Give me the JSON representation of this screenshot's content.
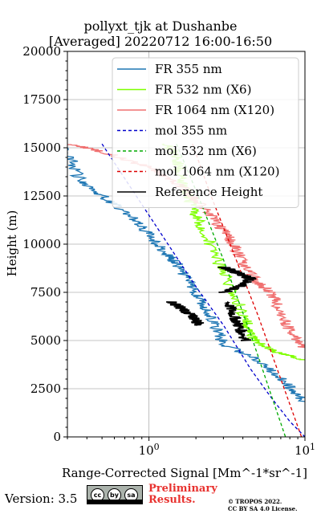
{
  "chart_data": {
    "type": "line",
    "title": "pollyxt_tjk at Dushanbe",
    "subtitle": "[Averaged] 20220712 16:00-16:50",
    "xlabel": "Range-Corrected Signal [Mm^-1*sr^-1]",
    "ylabel": "Height (m)",
    "xscale": "log",
    "xlim": [
      0.3,
      10
    ],
    "ylim": [
      0,
      20000
    ],
    "x_ticks": [
      1,
      10
    ],
    "x_tick_labels": [
      "10^0",
      "10^1"
    ],
    "y_ticks": [
      0,
      2500,
      5000,
      7500,
      10000,
      12500,
      15000,
      17500,
      20000
    ],
    "grid": true,
    "legend_position": "top-right",
    "series": [
      {
        "name": "FR 355 nm",
        "color": "#1f77b4",
        "style": "solid",
        "noisy": true,
        "x": [
          10,
          7.5,
          5,
          3,
          2.6,
          2.2,
          1.8,
          1.5,
          1.3,
          1.0,
          0.75,
          0.5,
          0.35,
          0.3
        ],
        "y": [
          1800,
          2800,
          4000,
          4800,
          6000,
          7000,
          8000,
          9000,
          9500,
          10500,
          11500,
          12500,
          13500,
          15000
        ]
      },
      {
        "name": "FR 532 nm (X6)",
        "color": "#7fff00",
        "style": "solid",
        "noisy": true,
        "x": [
          10,
          6.5,
          4.5,
          4.2,
          3.5,
          2.8,
          2.3,
          2.0,
          1.8,
          1.6,
          1.5,
          1.3
        ],
        "y": [
          4000,
          4400,
          5200,
          6000,
          7500,
          9000,
          10500,
          11500,
          12500,
          13500,
          14500,
          15200
        ]
      },
      {
        "name": "FR 1064 nm (X120)",
        "color": "#f07070",
        "style": "solid",
        "noisy": true,
        "x": [
          10,
          8,
          7,
          6,
          5,
          4,
          3.5,
          2.8,
          2.2,
          1.6,
          1.0,
          0.5,
          0.3
        ],
        "y": [
          4500,
          5500,
          6500,
          7500,
          8000,
          9000,
          10000,
          11000,
          12000,
          13000,
          14000,
          14800,
          15200
        ]
      },
      {
        "name": "mol 355 nm",
        "color": "#0000cc",
        "style": "dashed",
        "x": [
          0.5,
          1.0,
          2.0,
          3.0,
          4.5,
          6.0,
          8.0,
          10.0
        ],
        "y": [
          15200,
          11500,
          7800,
          5800,
          3500,
          2100,
          800,
          0
        ]
      },
      {
        "name": "mol 532 nm (X6)",
        "color": "#00aa00",
        "style": "dashed",
        "x": [
          1.5,
          2.0,
          3.0,
          4.5,
          6.0,
          7.5
        ],
        "y": [
          15200,
          12800,
          9200,
          5300,
          2300,
          0
        ]
      },
      {
        "name": "mol 1064 nm (X120)",
        "color": "#dd0000",
        "style": "dashed",
        "x": [
          1.9,
          2.5,
          3.5,
          5.0,
          7.0,
          9.5
        ],
        "y": [
          15200,
          12500,
          9500,
          6300,
          3000,
          0
        ]
      },
      {
        "name": "Reference Height",
        "color": "#000000",
        "style": "solid",
        "noisy": true,
        "segments": [
          {
            "x": [
              1.4,
              1.6,
              1.8,
              2.0,
              2.1
            ],
            "y": [
              7000,
              6700,
              6400,
              6100,
              5800
            ]
          },
          {
            "x": [
              3.0,
              3.5,
              4.0,
              4.5,
              4.0,
              3.5,
              3.0
            ],
            "y": [
              8800,
              8600,
              8400,
              8200,
              7900,
              7700,
              7500
            ]
          },
          {
            "x": [
              3.2,
              3.5,
              3.8,
              4.2
            ],
            "y": [
              7000,
              6300,
              5700,
              5000
            ]
          }
        ]
      }
    ]
  },
  "footer": {
    "version": "Version: 3.5",
    "license_badge": [
      "cc",
      "by",
      "sa"
    ],
    "preliminary": [
      "Preliminary",
      "Results."
    ],
    "copyright": [
      "© TROPOS 2022.",
      "CC BY SA 4.0 License."
    ]
  }
}
